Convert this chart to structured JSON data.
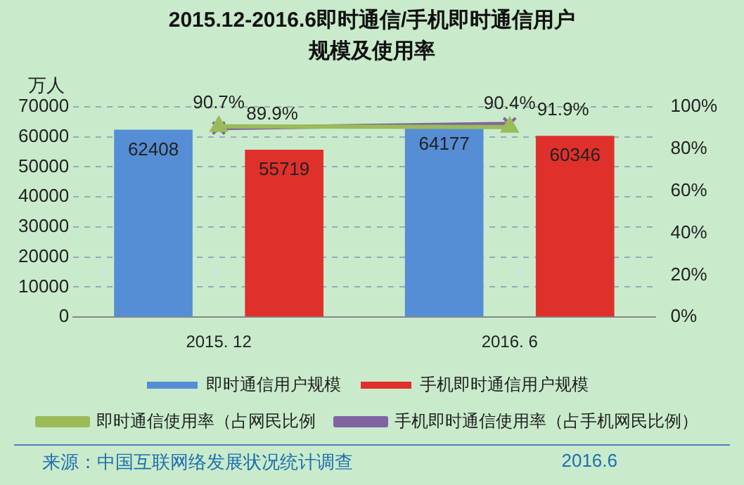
{
  "chart_data": {
    "type": "bar",
    "title": "2015.12-2016.6即时通信/手机即时通信用户规模及使用率",
    "ylabel": "万人",
    "categories": [
      "2015. 12",
      "2016. 6"
    ],
    "series": [
      {
        "name": "即时通信用户规模",
        "color": "#558ed5",
        "values": [
          62408,
          64177
        ],
        "value_labels": [
          "62408",
          "64177"
        ]
      },
      {
        "name": "手机即时通信用户规模",
        "color": "#e0302b",
        "values": [
          55719,
          60346
        ],
        "value_labels": [
          "55719",
          "60346"
        ]
      },
      {
        "name": "即时通信使用率（占网民比例",
        "type": "line",
        "axis": "y2",
        "color": "#9bbb59",
        "marker": "triangle",
        "values": [
          90.7,
          90.4
        ],
        "value_labels": [
          "90.7%",
          "90.4%"
        ]
      },
      {
        "name": "手机即时通信使用率（占手机网民比例）",
        "type": "line",
        "axis": "y2",
        "color": "#8064a2",
        "marker": "cross",
        "values": [
          89.9,
          91.9
        ],
        "value_labels": [
          "89.9%",
          "91.9%"
        ]
      }
    ],
    "ylim": [
      0,
      70000
    ],
    "yticks": [
      0,
      10000,
      20000,
      30000,
      40000,
      50000,
      60000,
      70000
    ],
    "y2lim": [
      0,
      100
    ],
    "y2ticks": [
      {
        "value": 0,
        "label": "0%"
      },
      {
        "value": 20,
        "label": "20%"
      },
      {
        "value": 40,
        "label": "40%"
      },
      {
        "value": 60,
        "label": "60%"
      },
      {
        "value": 80,
        "label": "80%"
      },
      {
        "value": 100,
        "label": "100%"
      }
    ],
    "grid": "y",
    "legend": "bottom",
    "annotations": [
      "来源：中国互联网络发展状况统计调查",
      "2016.6"
    ]
  }
}
